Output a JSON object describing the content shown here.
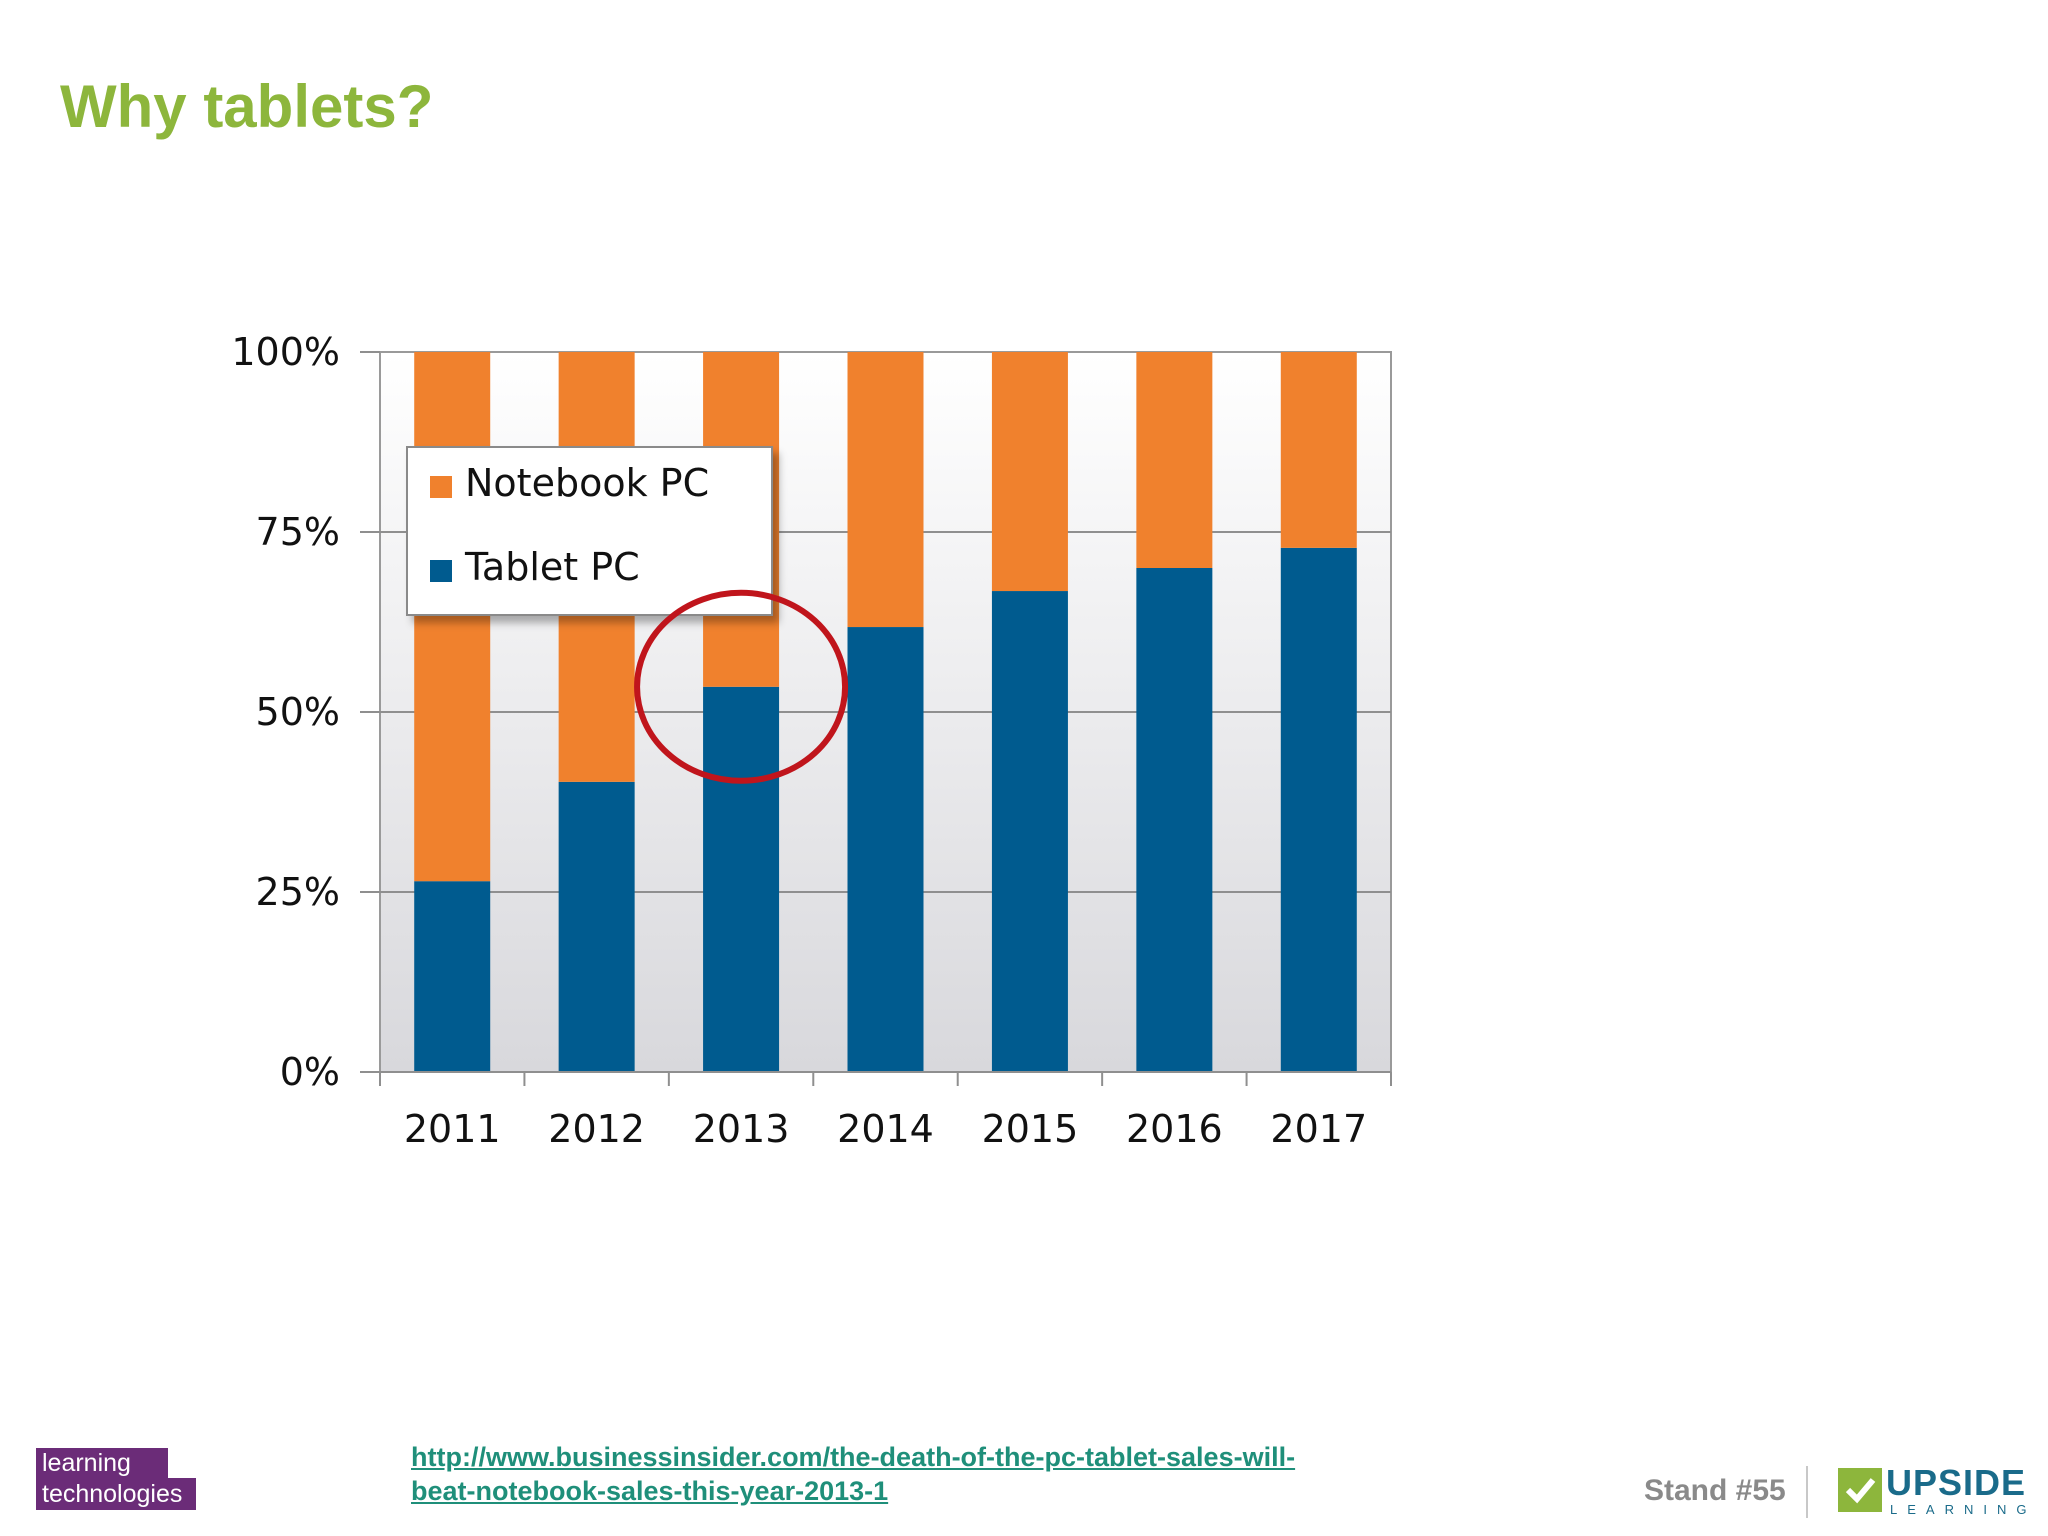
{
  "slide": {
    "title": "Why tablets?",
    "source_url_line1": "http://www.businessinsider.com/the-death-of-the-pc-tablet-sales-will-",
    "source_url_line2": "beat-notebook-sales-this-year-2013-1",
    "stand": "Stand #55",
    "logo_left_line1": "learning",
    "logo_left_line2": "technologies",
    "logo_right_word": "UPSIDE",
    "logo_right_sub": "LEARNING"
  },
  "colors": {
    "title": "#8db63c",
    "notebook": "#f0812d",
    "tablet": "#005b8f",
    "highlight": "#c0151c"
  },
  "chart_data": {
    "type": "bar",
    "stacked": true,
    "categories": [
      "2011",
      "2012",
      "2013",
      "2014",
      "2015",
      "2016",
      "2017"
    ],
    "series": [
      {
        "name": "Tablet PC",
        "values": [
          26.5,
          40.3,
          53.5,
          61.8,
          66.8,
          70.0,
          72.8
        ]
      },
      {
        "name": "Notebook PC",
        "values": [
          73.5,
          59.7,
          46.5,
          38.2,
          33.2,
          30.0,
          27.2
        ]
      }
    ],
    "ylim": [
      0,
      100
    ],
    "yticks": [
      "0%",
      "25%",
      "50%",
      "75%",
      "100%"
    ],
    "ytick_values": [
      0,
      25,
      50,
      75,
      100
    ],
    "grid": true,
    "legend_position": "top-left",
    "legend_order": [
      "Notebook PC",
      "Tablet PC"
    ],
    "highlight_category": "2013"
  }
}
